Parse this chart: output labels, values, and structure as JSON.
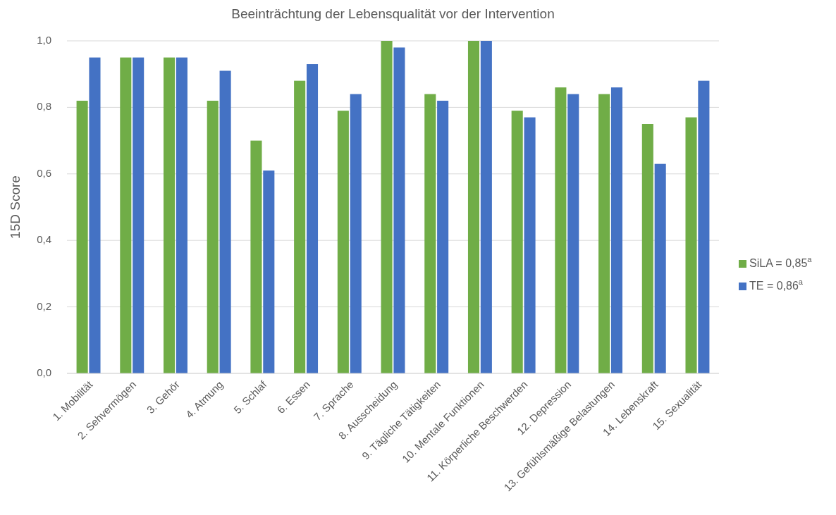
{
  "chart_data": {
    "type": "bar",
    "title": "Beeinträchtung der Lebensqualität vor der Intervention",
    "ylabel": "15D Score",
    "categories": [
      "1. Mobilität",
      "2. Sehvermögen",
      "3. Gehör",
      "4. Atmung",
      "5. Schlaf",
      "6. Essen",
      "7. Sprache",
      "8. Ausscheidung",
      "9. Tägliche Tätigkeiten",
      "10. Mentale Funktionen",
      "11. Körperliche Beschwerden",
      "12. Depression",
      "13. Gefühlsmäßige Belastungen",
      "14. Lebenskraft",
      "15. Sexualität"
    ],
    "series": [
      {
        "name": "SiLA = 0,85$^{a}$",
        "color": "#70ad47",
        "values": [
          0.82,
          0.95,
          0.95,
          0.82,
          0.7,
          0.88,
          0.79,
          1.0,
          0.84,
          1.0,
          0.79,
          0.86,
          0.84,
          0.75,
          0.77
        ]
      },
      {
        "name": "TE = 0,86$^{a}$",
        "color": "#4472c4",
        "values": [
          0.95,
          0.95,
          0.95,
          0.91,
          0.61,
          0.93,
          0.84,
          0.98,
          0.82,
          1.0,
          0.77,
          0.84,
          0.86,
          0.63,
          0.88
        ]
      }
    ],
    "ylim": [
      0,
      1
    ],
    "yticks": [
      {
        "value": 0,
        "label": "0,0"
      },
      {
        "value": 0.2,
        "label": "0,2"
      },
      {
        "value": 0.4,
        "label": "0,4"
      },
      {
        "value": 0.6,
        "label": "0,6"
      },
      {
        "value": 0.8,
        "label": "0,8"
      },
      {
        "value": 1,
        "label": "1,0"
      }
    ],
    "grid": "y",
    "legend": "right"
  }
}
